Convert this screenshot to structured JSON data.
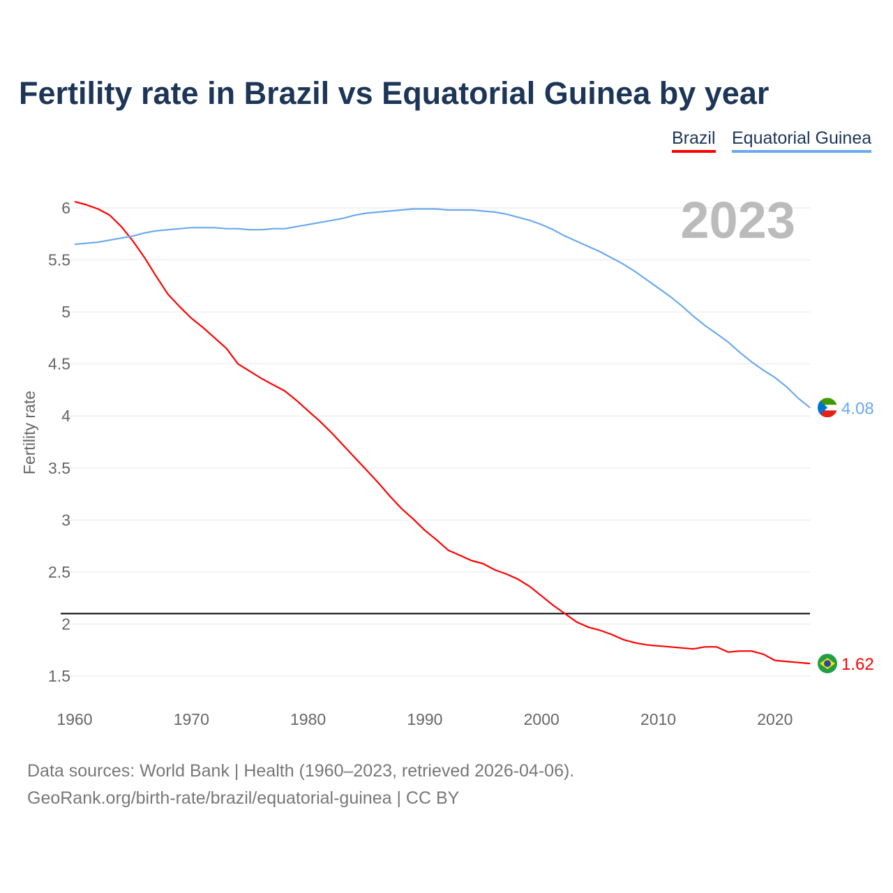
{
  "chart_data": {
    "type": "line",
    "title": "Fertility rate in Brazil vs Equatorial Guinea by year",
    "xlabel": "",
    "ylabel": "Fertility rate",
    "xlim": [
      1960,
      2023
    ],
    "ylim": [
      1.5,
      6
    ],
    "x_ticks": [
      "1960",
      "1970",
      "1980",
      "1990",
      "2000",
      "2010",
      "2020"
    ],
    "y_ticks": [
      "1.5",
      "2",
      "2.5",
      "3",
      "3.5",
      "4",
      "4.5",
      "5",
      "5.5",
      "6"
    ],
    "grid": true,
    "legend_position": "top-right",
    "year_label": "2023",
    "reference_line": 2.1,
    "x_start": 1960,
    "series": [
      {
        "name": "Brazil",
        "color": "#ff0000",
        "end_label": "1.62",
        "values": [
          6.06,
          6.03,
          5.99,
          5.93,
          5.82,
          5.68,
          5.52,
          5.34,
          5.17,
          5.05,
          4.94,
          4.85,
          4.75,
          4.65,
          4.5,
          4.43,
          4.36,
          4.3,
          4.24,
          4.15,
          4.05,
          3.95,
          3.84,
          3.72,
          3.6,
          3.48,
          3.36,
          3.23,
          3.11,
          3.01,
          2.9,
          2.81,
          2.71,
          2.66,
          2.61,
          2.58,
          2.52,
          2.48,
          2.43,
          2.36,
          2.27,
          2.18,
          2.1,
          2.02,
          1.97,
          1.94,
          1.9,
          1.85,
          1.82,
          1.8,
          1.79,
          1.78,
          1.77,
          1.76,
          1.78,
          1.78,
          1.73,
          1.74,
          1.74,
          1.71,
          1.65,
          1.64,
          1.63,
          1.62
        ]
      },
      {
        "name": "Equatorial Guinea",
        "color": "#6aa9ec",
        "end_label": "4.08",
        "values": [
          5.65,
          5.66,
          5.67,
          5.69,
          5.71,
          5.73,
          5.76,
          5.78,
          5.79,
          5.8,
          5.81,
          5.81,
          5.81,
          5.8,
          5.8,
          5.79,
          5.79,
          5.8,
          5.8,
          5.82,
          5.84,
          5.86,
          5.88,
          5.9,
          5.93,
          5.95,
          5.96,
          5.97,
          5.98,
          5.99,
          5.99,
          5.99,
          5.98,
          5.98,
          5.98,
          5.97,
          5.96,
          5.94,
          5.91,
          5.88,
          5.84,
          5.79,
          5.73,
          5.68,
          5.63,
          5.58,
          5.52,
          5.46,
          5.39,
          5.31,
          5.23,
          5.15,
          5.06,
          4.96,
          4.87,
          4.79,
          4.71,
          4.61,
          4.52,
          4.44,
          4.37,
          4.28,
          4.17,
          4.08
        ]
      }
    ]
  },
  "footer": {
    "line1": "Data sources: World Bank | Health (1960–2023, retrieved 2026-04-06).",
    "line2": "GeoRank.org/birth-rate/brazil/equatorial-guinea | CC BY"
  }
}
